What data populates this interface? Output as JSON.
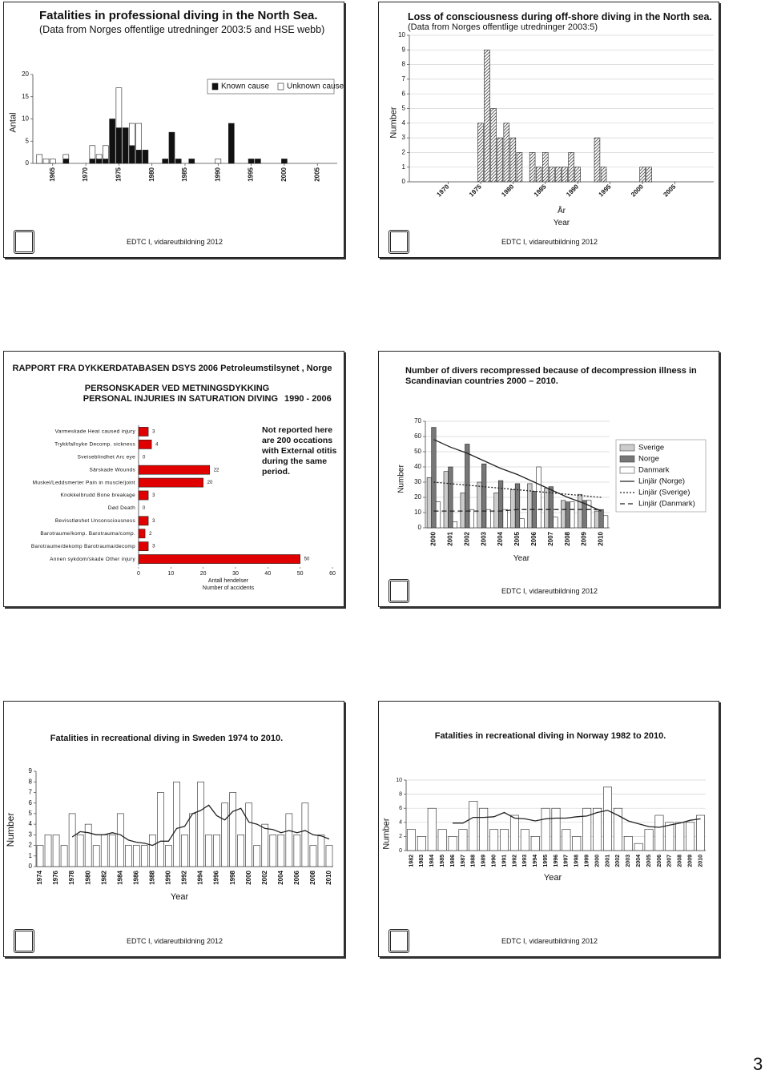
{
  "chart_data": [
    {
      "type": "bar",
      "title": "Fatalities in professional diving in the North Sea.",
      "subtitle": "(Data from Norges offentlige utredninger 2003:5 and HSE webb)",
      "y_label": "Antal",
      "x": [
        1963,
        1964,
        1965,
        1967,
        1971,
        1972,
        1973,
        1974,
        1975,
        1976,
        1977,
        1978,
        1979,
        1982,
        1983,
        1984,
        1986,
        1990,
        1992,
        1995,
        1996,
        2000
      ],
      "stacked": true,
      "series": [
        {
          "name": "Known cause",
          "color": "#111111",
          "values": [
            0,
            0,
            0,
            1,
            1,
            1,
            1,
            10,
            8,
            8,
            4,
            3,
            3,
            1,
            7,
            1,
            1,
            0,
            9,
            1,
            1,
            1
          ]
        },
        {
          "name": "Unknown cause",
          "color": "#ffffff",
          "values": [
            2,
            1,
            1,
            1,
            3,
            1,
            3,
            0,
            9,
            0,
            5,
            6,
            0,
            0,
            0,
            0,
            0,
            1,
            0,
            0,
            0,
            0
          ]
        }
      ],
      "xlim": [
        1962,
        2008
      ],
      "xticks": [
        1965,
        1970,
        1975,
        1980,
        1985,
        1990,
        1995,
        2000,
        2005
      ],
      "ylim": [
        0,
        20
      ],
      "yticks": [
        0,
        5,
        10,
        15,
        20
      ],
      "grid": false,
      "legend": "top right"
    },
    {
      "type": "bar",
      "title": "Loss of consciousness during off-shore diving in the North sea.",
      "subtitle": "(Data from Norges offentlige utredninger 2003:5)",
      "y_label": "Number",
      "x_label_local": "År",
      "x_label": "Year",
      "x": [
        1975,
        1976,
        1977,
        1978,
        1979,
        1980,
        1981,
        1983,
        1984,
        1985,
        1986,
        1987,
        1988,
        1989,
        1990,
        1993,
        1994,
        2000,
        2001
      ],
      "values": [
        4,
        9,
        5,
        3,
        4,
        3,
        2,
        2,
        1,
        2,
        1,
        1,
        1,
        2,
        1,
        3,
        1,
        1,
        1
      ],
      "color": "#444444",
      "hatch": true,
      "xlim": [
        1964,
        2011
      ],
      "xticks": [
        1970,
        1975,
        1980,
        1985,
        1990,
        1995,
        2000,
        2005
      ],
      "ylim": [
        0,
        10
      ],
      "yticks": [
        0,
        1,
        2,
        3,
        4,
        5,
        6,
        7,
        8,
        9,
        10
      ],
      "grid": true
    },
    {
      "type": "barh",
      "title": "RAPPORT FRA DYKKERDATABASEN DSYS 2006 Petroleumstilsynet , Norge",
      "subtitle": "PERSONSKADER VED METNINGSDYKKING",
      "subtitle_en": "PERSONAL INJURIES IN SATURATION DIVING",
      "period": "1990 - 2006",
      "annotation": "Not reported here are 200 occations with External otitis during the same period.",
      "x_label": "Antall hendelser",
      "x_label_en": "Number of accidents",
      "categories": [
        "Varmeskade Heat caused injury",
        "Trykkfallsyke Decomp. sickness",
        "Sveiseblindhet Arc eye",
        "Särskade Wounds",
        "Muskel/Leddsmerter Pain in muscle/joint",
        "Knokkelbrudd Bone breakage",
        "Død Death",
        "Bevisstløshet Unconsciousness",
        "Barotraume/komp. Barotrauma/comp.",
        "Barotraume/dekomp Barotrauma/decomp",
        "Annen sykdom/skade Other injury"
      ],
      "values": [
        3,
        4,
        0,
        22,
        20,
        3,
        0,
        3,
        2,
        3,
        50
      ],
      "color": "#e00000",
      "xlim": [
        0,
        60
      ],
      "xticks": [
        0,
        10,
        20,
        30,
        40,
        50,
        60
      ]
    },
    {
      "type": "bar",
      "title": "Number of divers recompressed because of decompression illness in Scandinavian countries 2000 – 2010.",
      "y_label": "Number",
      "x_label": "Year",
      "categories": [
        "2000",
        "2001",
        "2002",
        "2003",
        "2004",
        "2005",
        "2006",
        "2007",
        "2008",
        "2009",
        "2010"
      ],
      "series": [
        {
          "name": "Sverige",
          "color": "#cccccc",
          "values": [
            33,
            37,
            23,
            30,
            23,
            25,
            29,
            26,
            18,
            22,
            11
          ]
        },
        {
          "name": "Norge",
          "color": "#777777",
          "values": [
            66,
            40,
            55,
            42,
            31,
            29,
            24,
            27,
            17,
            18,
            12
          ]
        },
        {
          "name": "Danmark",
          "color": "#ffffff",
          "values": [
            17,
            4,
            12,
            12,
            12,
            6,
            40,
            7,
            17,
            18,
            8
          ]
        }
      ],
      "lines": [
        {
          "name": "Linjär (Norge)",
          "color": "#222222",
          "dash": "solid",
          "values": [
            58,
            53,
            49,
            44,
            39,
            35,
            30,
            25,
            20,
            16,
            11
          ]
        },
        {
          "name": "Linjär (Sverige)",
          "color": "#222222",
          "dash": "dotted",
          "values": [
            30,
            29,
            28,
            27,
            26,
            25,
            24,
            23,
            22,
            21,
            20
          ]
        },
        {
          "name": "Linjär (Danmark)",
          "color": "#222222",
          "dash": "dashed",
          "values": [
            11,
            11,
            11,
            11,
            11,
            12,
            12,
            12,
            12,
            12,
            12
          ]
        }
      ],
      "ylim": [
        0,
        70
      ],
      "yticks": [
        0,
        10,
        20,
        30,
        40,
        50,
        60,
        70
      ],
      "grid": true,
      "legend": "right"
    },
    {
      "type": "bar",
      "title": "Fatalities in recreational diving in Sweden 1974 to 2010.",
      "y_label": "Number",
      "x_label": "Year",
      "categories": [
        "1974",
        null,
        "1976",
        null,
        "1978",
        null,
        "1980",
        null,
        "1982",
        null,
        "1984",
        null,
        "1986",
        null,
        "1988",
        null,
        "1990",
        null,
        "1992",
        null,
        "1994",
        null,
        "1996",
        null,
        "1998",
        null,
        "2000",
        null,
        "2002",
        null,
        "2004",
        null,
        "2006",
        null,
        "2008",
        null,
        "2010"
      ],
      "values": [
        2,
        3,
        3,
        2,
        5,
        3,
        4,
        2,
        3,
        3,
        5,
        2,
        2,
        2,
        3,
        7,
        2,
        8,
        3,
        5,
        8,
        3,
        3,
        6,
        7,
        3,
        6,
        2,
        4,
        3,
        3,
        5,
        3,
        6,
        2,
        3,
        2
      ],
      "color": "#ffffff",
      "lines": [
        {
          "color": "#222222",
          "dash": "solid",
          "values": [
            null,
            null,
            null,
            null,
            2.8,
            3.3,
            3.2,
            3.0,
            3.0,
            3.2,
            3.0,
            2.5,
            2.3,
            2.2,
            2.0,
            2.4,
            2.4,
            3.6,
            3.8,
            5.0,
            5.3,
            5.8,
            4.8,
            4.4,
            5.2,
            5.5,
            4.2,
            4.0,
            3.6,
            3.5,
            3.2,
            3.4,
            3.2,
            3.4,
            3.0,
            2.9,
            2.6
          ]
        }
      ],
      "ylim": [
        0,
        9
      ],
      "yticks": [
        0,
        1,
        2,
        3,
        4,
        5,
        6,
        7,
        8,
        9
      ],
      "grid": false
    },
    {
      "type": "bar",
      "title": "Fatalities in recreational diving in Norway 1982 to 2010.",
      "y_label": "Number",
      "x_label": "Year",
      "categories": [
        "1982",
        "1983",
        "1984",
        "1985",
        "1986",
        "1987",
        "1988",
        "1989",
        "1990",
        "1991",
        "1992",
        "1993",
        "1994",
        "1995",
        "1996",
        "1997",
        "1998",
        "1999",
        "2000",
        "2001",
        "2002",
        "2003",
        "2004",
        "2005",
        "2006",
        "2007",
        "2008",
        "2009",
        "2010"
      ],
      "values": [
        3,
        2,
        6,
        3,
        2,
        3,
        7,
        6,
        3,
        3,
        5,
        3,
        2,
        6,
        6,
        3,
        2,
        6,
        6,
        9,
        6,
        2,
        1,
        3,
        5,
        4,
        4,
        4,
        5
      ],
      "color": "#ffffff",
      "lines": [
        {
          "color": "#222222",
          "dash": "solid",
          "values": [
            null,
            null,
            null,
            null,
            3.9,
            3.9,
            4.7,
            4.7,
            4.8,
            5.4,
            4.6,
            4.5,
            4.2,
            4.5,
            4.6,
            4.6,
            4.8,
            4.9,
            5.4,
            5.7,
            5.0,
            4.2,
            3.8,
            3.4,
            3.3,
            3.6,
            3.9,
            4.3,
            4.5
          ]
        }
      ],
      "ylim": [
        0,
        10
      ],
      "yticks": [
        0,
        2,
        4,
        6,
        8,
        10
      ],
      "grid": true
    }
  ],
  "footers": [
    "EDTC I, vidareutbildning 2012",
    "EDTC I, vidareutbildning 2012",
    "EDTC I, vidareutbildning 2012",
    "EDTC I, vidareutbildning 2012",
    "EDTC I, vidareutbildning 2012"
  ],
  "page_number": "3"
}
